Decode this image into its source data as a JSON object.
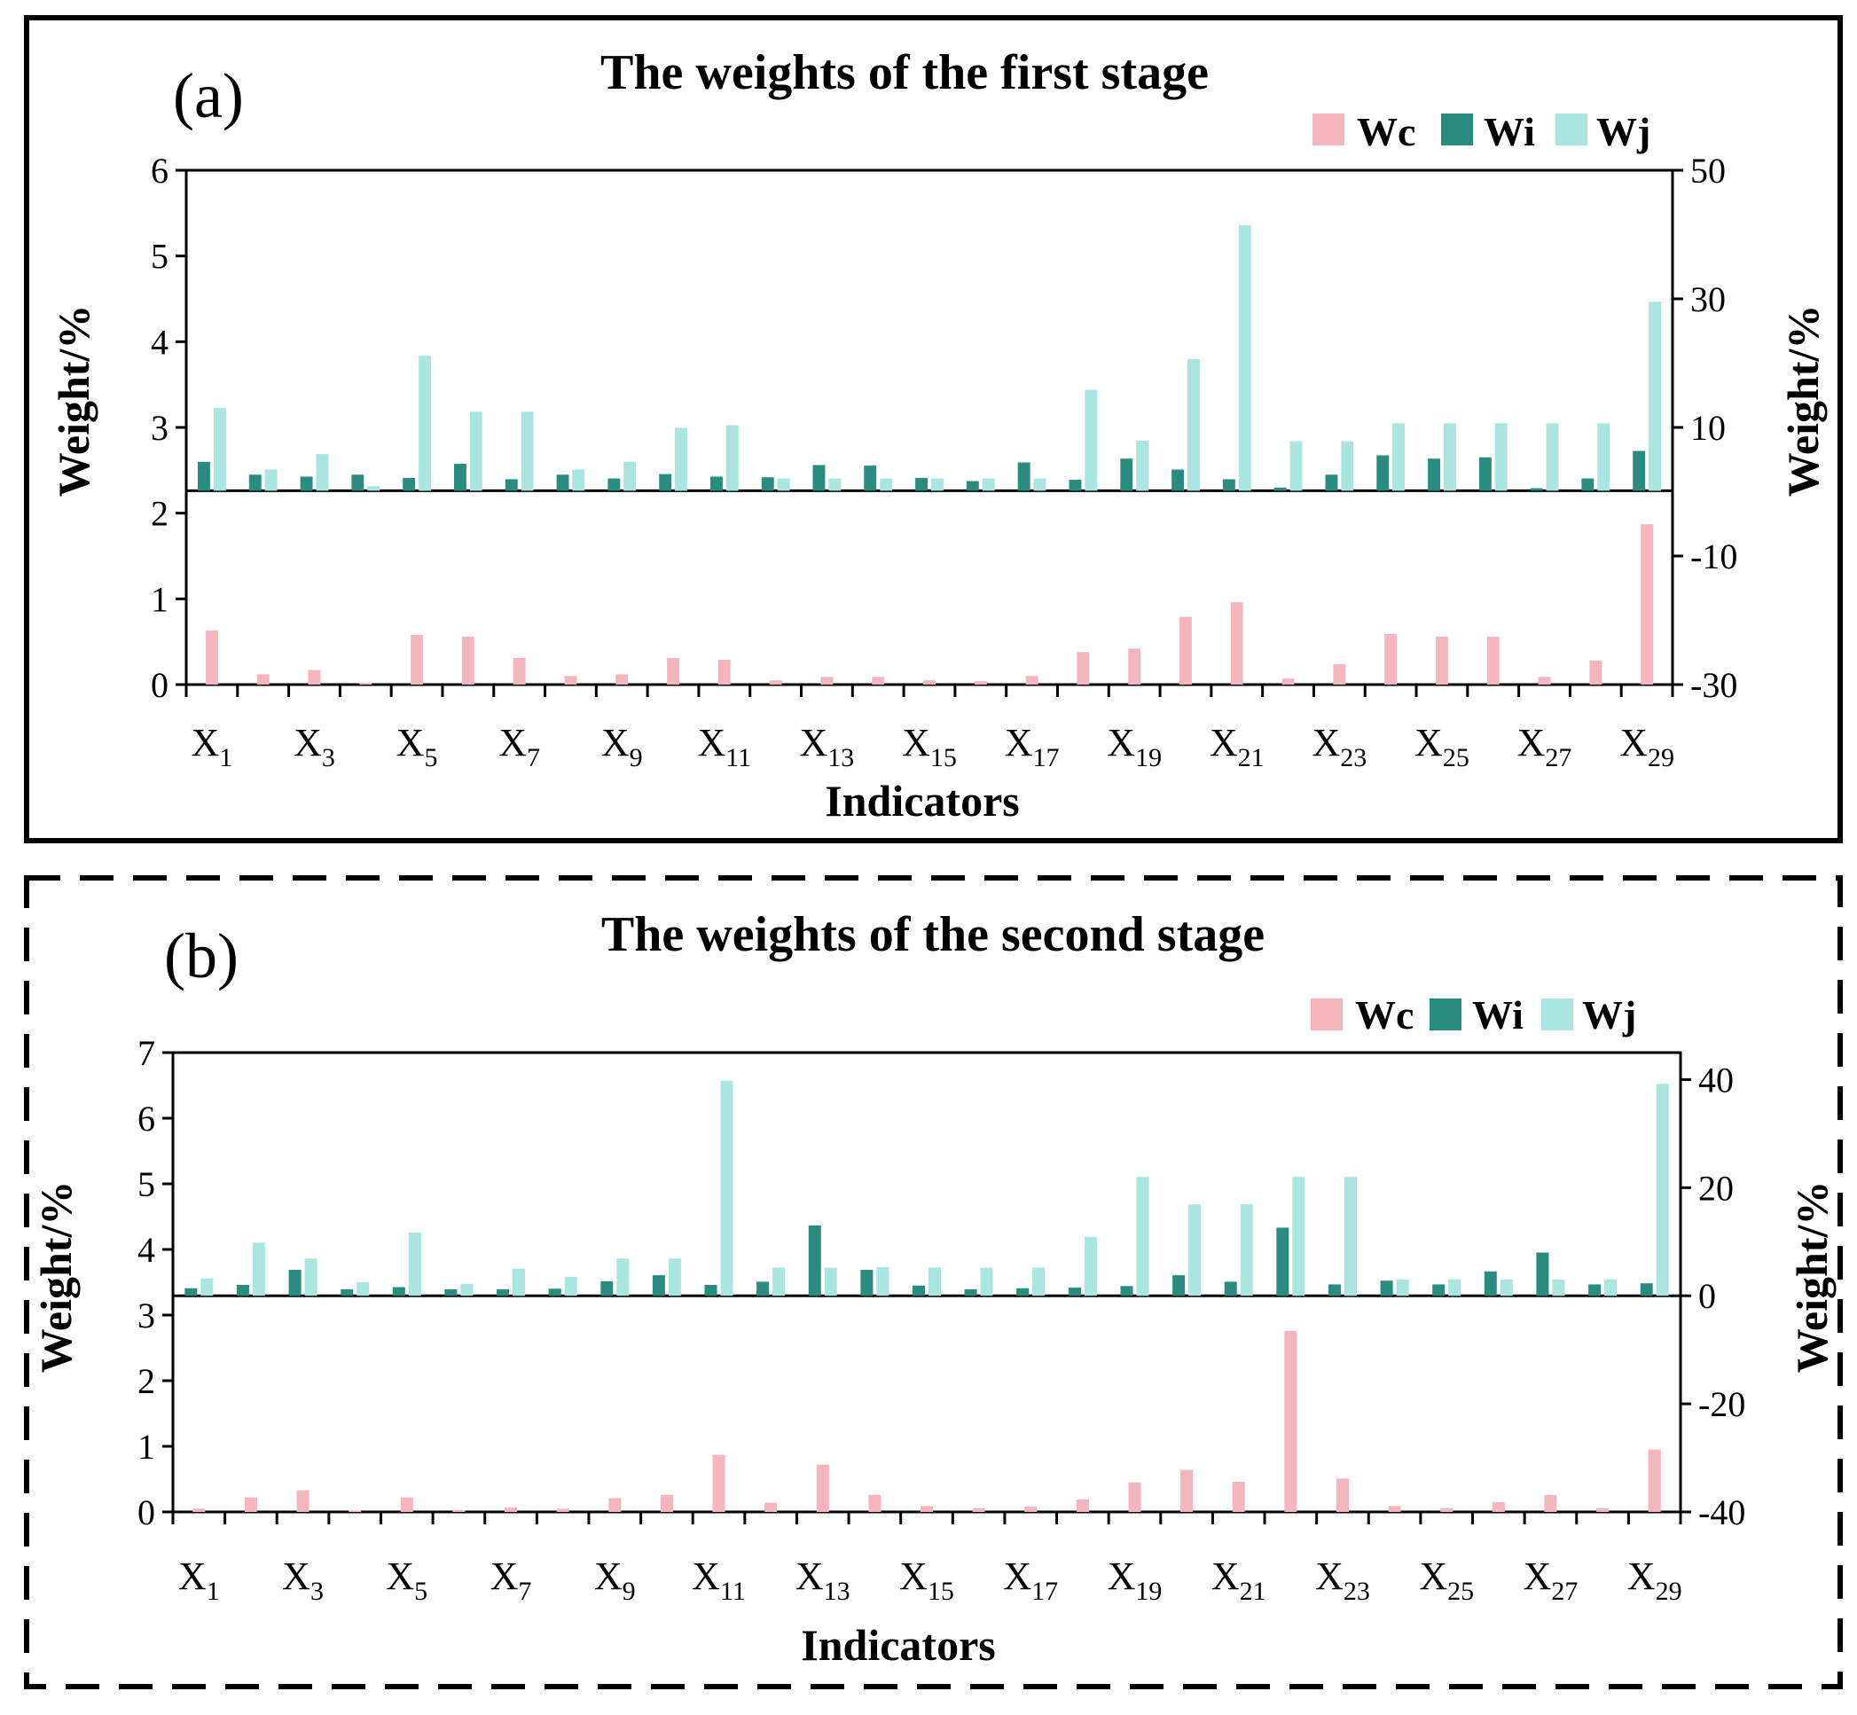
{
  "figure": {
    "legend_labels": [
      "Wc",
      "Wi",
      "Wj"
    ],
    "colors": {
      "Wc": "#f4b6bc",
      "Wi": "#2a8c80",
      "Wj": "#a8e6df",
      "frame": "#000000"
    }
  },
  "chart_data": [
    {
      "type": "bar",
      "panel_label": "(a)",
      "title": "The weights of the first stage",
      "xlabel": "Indicators",
      "ylabel_left": "Weight/%",
      "ylabel_right": "Weight/%",
      "ylim_left": [
        0,
        6
      ],
      "yticks_left": [
        0,
        1,
        2,
        3,
        4,
        5,
        6
      ],
      "ylim_right": [
        -30,
        50
      ],
      "yticks_right": [
        -30,
        -10,
        10,
        30,
        50
      ],
      "right_zero": 0.15,
      "categories": [
        "X1",
        "X2",
        "X3",
        "X4",
        "X5",
        "X6",
        "X7",
        "X8",
        "X9",
        "X10",
        "X11",
        "X12",
        "X13",
        "X14",
        "X15",
        "X16",
        "X17",
        "X18",
        "X19",
        "X20",
        "X21",
        "X22",
        "X23",
        "X24",
        "X25",
        "X26",
        "X27",
        "X28",
        "X29"
      ],
      "xtick_labels": [
        {
          "base": "X",
          "sub": "1"
        },
        {
          "base": "X",
          "sub": "3"
        },
        {
          "base": "X",
          "sub": "5"
        },
        {
          "base": "X",
          "sub": "7"
        },
        {
          "base": "X",
          "sub": "9"
        },
        {
          "base": "X",
          "sub": "11"
        },
        {
          "base": "X",
          "sub": "13"
        },
        {
          "base": "X",
          "sub": "15"
        },
        {
          "base": "X",
          "sub": "17"
        },
        {
          "base": "X",
          "sub": "19"
        },
        {
          "base": "X",
          "sub": "21"
        },
        {
          "base": "X",
          "sub": "23"
        },
        {
          "base": "X",
          "sub": "25"
        },
        {
          "base": "X",
          "sub": "27"
        },
        {
          "base": "X",
          "sub": "29"
        }
      ],
      "series": [
        {
          "name": "Wc",
          "axis": "left",
          "values": [
            0.63,
            0.12,
            0.17,
            0.02,
            0.58,
            0.56,
            0.31,
            0.1,
            0.12,
            0.31,
            0.29,
            0.05,
            0.09,
            0.09,
            0.05,
            0.04,
            0.1,
            0.38,
            0.42,
            0.79,
            0.96,
            0.07,
            0.24,
            0.59,
            0.56,
            0.56,
            0.09,
            0.28,
            1.87
          ]
        },
        {
          "name": "Wi",
          "axis": "right",
          "values": [
            4.5,
            2.5,
            2.2,
            2.5,
            2.0,
            4.2,
            1.8,
            2.5,
            1.9,
            2.6,
            2.2,
            2.1,
            4.0,
            3.9,
            2.0,
            1.5,
            4.4,
            1.7,
            5.0,
            3.3,
            1.8,
            0.5,
            2.5,
            5.5,
            5.0,
            5.2,
            0.4,
            1.9,
            6.2
          ]
        },
        {
          "name": "Wj",
          "axis": "right",
          "values": [
            12.9,
            3.3,
            5.7,
            0.7,
            21.0,
            12.3,
            12.3,
            3.3,
            4.5,
            9.8,
            10.2,
            1.9,
            1.9,
            1.9,
            1.9,
            1.9,
            1.9,
            15.7,
            7.8,
            20.5,
            41.3,
            7.7,
            7.7,
            10.5,
            10.5,
            10.5,
            10.5,
            10.5,
            29.4
          ]
        }
      ]
    },
    {
      "type": "bar",
      "panel_label": "(b)",
      "title": "The weights of the second stage",
      "xlabel": "Indicators",
      "ylabel_left": "Weight/%",
      "ylabel_right": "Weight/%",
      "ylim_left": [
        0,
        7
      ],
      "yticks_left": [
        0,
        1,
        2,
        3,
        4,
        5,
        6,
        7
      ],
      "ylim_right": [
        -40,
        45
      ],
      "yticks_right": [
        -40,
        -20,
        0,
        20,
        40
      ],
      "right_zero": 0,
      "categories": [
        "X1",
        "X2",
        "X3",
        "X4",
        "X5",
        "X6",
        "X7",
        "X8",
        "X9",
        "X10",
        "X11",
        "X12",
        "X13",
        "X14",
        "X15",
        "X16",
        "X17",
        "X18",
        "X19",
        "X20",
        "X21",
        "X22",
        "X23",
        "X24",
        "X25",
        "X26",
        "X27",
        "X28",
        "X29"
      ],
      "xtick_labels": [
        {
          "base": "X",
          "sub": "1"
        },
        {
          "base": "X",
          "sub": "3"
        },
        {
          "base": "X",
          "sub": "5"
        },
        {
          "base": "X",
          "sub": "7"
        },
        {
          "base": "X",
          "sub": "9"
        },
        {
          "base": "X",
          "sub": "11"
        },
        {
          "base": "X",
          "sub": "13"
        },
        {
          "base": "X",
          "sub": "15"
        },
        {
          "base": "X",
          "sub": "17"
        },
        {
          "base": "X",
          "sub": "19"
        },
        {
          "base": "X",
          "sub": "21"
        },
        {
          "base": "X",
          "sub": "23"
        },
        {
          "base": "X",
          "sub": "25"
        },
        {
          "base": "X",
          "sub": "27"
        },
        {
          "base": "X",
          "sub": "29"
        }
      ],
      "series": [
        {
          "name": "Wc",
          "axis": "left",
          "values": [
            0.05,
            0.22,
            0.33,
            0.02,
            0.22,
            0.03,
            0.07,
            0.05,
            0.21,
            0.26,
            0.87,
            0.14,
            0.72,
            0.26,
            0.09,
            0.06,
            0.08,
            0.19,
            0.45,
            0.64,
            0.46,
            2.76,
            0.51,
            0.09,
            0.06,
            0.15,
            0.26,
            0.06,
            0.95
          ]
        },
        {
          "name": "Wi",
          "axis": "right",
          "values": [
            1.4,
            2.0,
            4.8,
            1.2,
            1.6,
            1.2,
            1.2,
            1.3,
            2.7,
            3.8,
            2.0,
            2.6,
            13.0,
            4.8,
            1.9,
            1.2,
            1.4,
            1.5,
            1.8,
            3.8,
            2.6,
            12.6,
            2.1,
            2.8,
            2.1,
            4.5,
            8.0,
            2.1,
            2.3
          ]
        },
        {
          "name": "Wj",
          "axis": "right",
          "values": [
            3.2,
            9.8,
            6.9,
            2.5,
            11.7,
            2.2,
            5.0,
            3.5,
            6.9,
            6.9,
            39.8,
            5.2,
            5.2,
            5.3,
            5.2,
            5.2,
            5.2,
            10.9,
            22.0,
            16.9,
            16.9,
            22.0,
            22.0,
            3.0,
            3.0,
            3.0,
            3.0,
            3.0,
            39.2
          ]
        }
      ]
    }
  ]
}
